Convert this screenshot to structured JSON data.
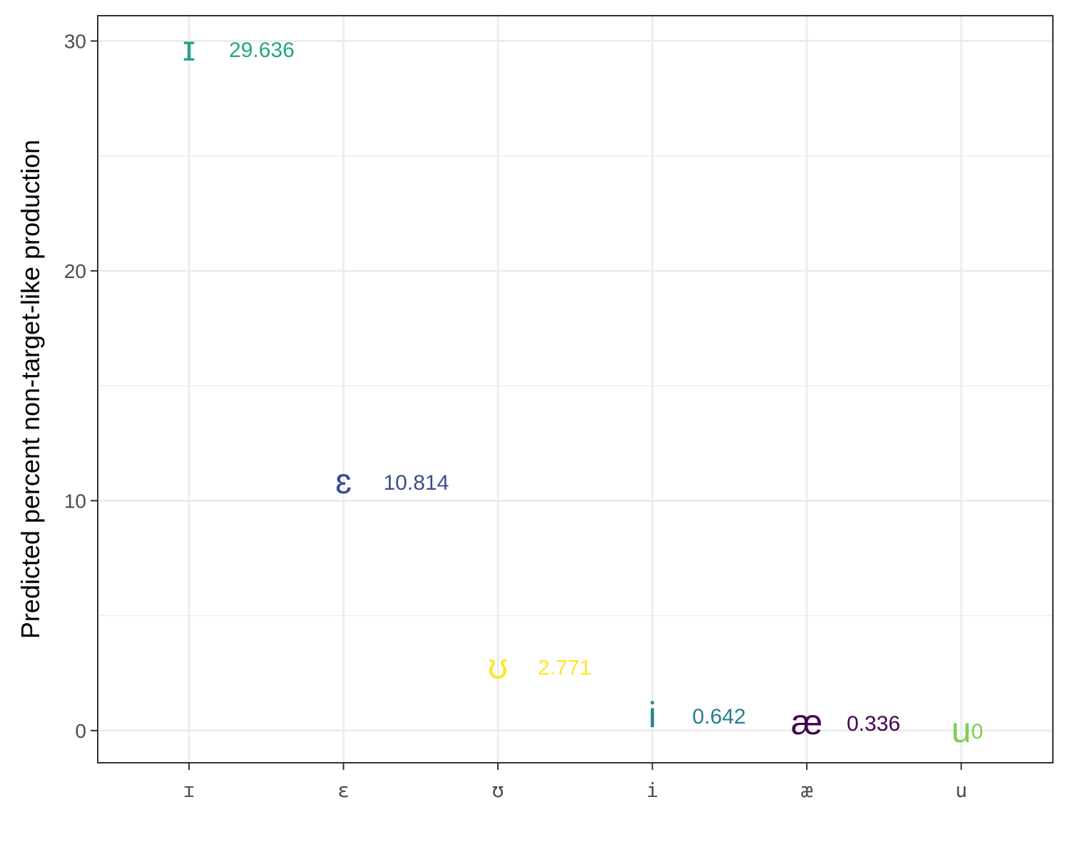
{
  "chart_data": {
    "type": "scatter",
    "title": "",
    "xlabel": "",
    "ylabel": "Predicted percent non-target-like production",
    "categories": [
      "ɪ",
      "ɛ",
      "ʊ",
      "i",
      "æ",
      "u"
    ],
    "values": [
      29.636,
      10.814,
      2.771,
      0.642,
      0.336,
      0
    ],
    "point_symbols": [
      "ɪ",
      "ɛ",
      "ʊ",
      "i",
      "æ",
      "u"
    ],
    "point_labels": [
      "29.636",
      "10.814",
      "2.771",
      "0.642",
      "0.336",
      "0"
    ],
    "colors": [
      "#21a685",
      "#3b4f8e",
      "#fde725",
      "#287d8e",
      "#440154",
      "#7ad151"
    ],
    "ylim": [
      -1.4,
      31.1
    ],
    "yticks": [
      0,
      10,
      20,
      30
    ],
    "grid": true,
    "legend": "none"
  }
}
